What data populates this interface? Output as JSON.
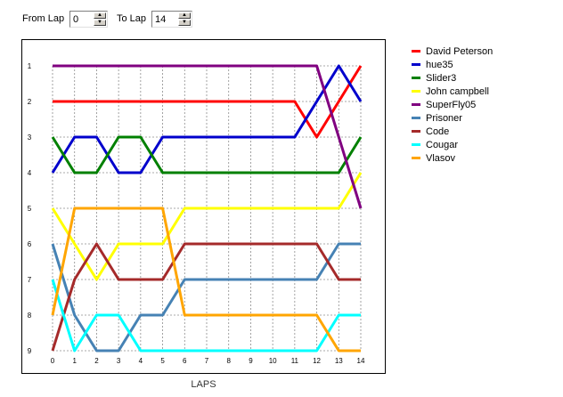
{
  "controls": {
    "from_lap_label": "From Lap",
    "from_lap_value": "0",
    "to_lap_label": "To Lap",
    "to_lap_value": "14",
    "up_icon": "spin-up-arrow-icon",
    "down_icon": "spin-down-arrow-icon"
  },
  "chart_data": {
    "type": "line",
    "title": "",
    "xlabel": "LAPS",
    "ylabel": "",
    "x": [
      0,
      1,
      2,
      3,
      4,
      5,
      6,
      7,
      8,
      9,
      10,
      11,
      12,
      13,
      14
    ],
    "xlim": [
      0,
      14
    ],
    "ylim": [
      1,
      9
    ],
    "y_inverted": true,
    "y_ticks": [
      1,
      2,
      3,
      4,
      5,
      6,
      7,
      8,
      9
    ],
    "grid": true,
    "legend_position": "right",
    "series": [
      {
        "name": "David Peterson",
        "color": "#ff0000",
        "values": [
          2,
          2,
          2,
          2,
          2,
          2,
          2,
          2,
          2,
          2,
          2,
          2,
          3,
          2,
          1
        ]
      },
      {
        "name": "hue35",
        "color": "#0000cc",
        "values": [
          4,
          3,
          3,
          4,
          4,
          3,
          3,
          3,
          3,
          3,
          3,
          3,
          2,
          1,
          2
        ]
      },
      {
        "name": "Slider3",
        "color": "#008000",
        "values": [
          3,
          4,
          4,
          3,
          3,
          4,
          4,
          4,
          4,
          4,
          4,
          4,
          4,
          4,
          3
        ]
      },
      {
        "name": "John campbell",
        "color": "#ffff00",
        "values": [
          5,
          6,
          7,
          6,
          6,
          6,
          5,
          5,
          5,
          5,
          5,
          5,
          5,
          5,
          4
        ]
      },
      {
        "name": "SuperFly05",
        "color": "#800080",
        "values": [
          1,
          1,
          1,
          1,
          1,
          1,
          1,
          1,
          1,
          1,
          1,
          1,
          1,
          3,
          5
        ]
      },
      {
        "name": "Prisoner",
        "color": "#4682b4",
        "values": [
          6,
          8,
          9,
          9,
          8,
          8,
          7,
          7,
          7,
          7,
          7,
          7,
          7,
          6,
          6
        ]
      },
      {
        "name": "Code",
        "color": "#a52a2a",
        "values": [
          9,
          7,
          6,
          7,
          7,
          7,
          6,
          6,
          6,
          6,
          6,
          6,
          6,
          7,
          7
        ]
      },
      {
        "name": "Cougar",
        "color": "#00ffff",
        "values": [
          7,
          9,
          8,
          8,
          9,
          9,
          9,
          9,
          9,
          9,
          9,
          9,
          9,
          8,
          8
        ]
      },
      {
        "name": "Vlasov",
        "color": "#ffa500",
        "values": [
          8,
          5,
          5,
          5,
          5,
          5,
          8,
          8,
          8,
          8,
          8,
          8,
          8,
          9,
          9
        ]
      }
    ]
  }
}
